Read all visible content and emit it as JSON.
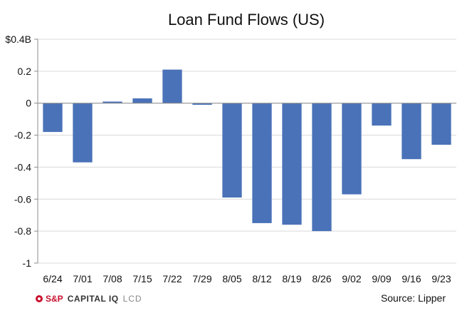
{
  "chart_data": {
    "type": "bar",
    "title": "Loan Fund Flows (US)",
    "categories": [
      "6/24",
      "7/01",
      "7/08",
      "7/15",
      "7/22",
      "7/29",
      "8/05",
      "8/12",
      "8/19",
      "8/26",
      "9/02",
      "9/09",
      "9/16",
      "9/23"
    ],
    "values": [
      -0.18,
      -0.37,
      0.01,
      0.03,
      0.21,
      -0.01,
      -0.59,
      -0.75,
      -0.76,
      -0.8,
      -0.57,
      -0.14,
      -0.35,
      -0.26
    ],
    "ylim": [
      -1,
      0.4
    ],
    "yticks": [
      0.4,
      0.2,
      0,
      -0.2,
      -0.4,
      -0.6,
      -0.8,
      -1
    ],
    "ytick_labels": [
      "$0.4B",
      "0.2",
      "0",
      "-0.2",
      "-0.4",
      "-0.6",
      "-0.8",
      "-1"
    ],
    "grid": true,
    "bar_color": "#4a72b8",
    "grid_color": "#d9d9d9",
    "axis_color": "#8c8c8c"
  },
  "footer": {
    "logo_sp": "S&P",
    "logo_ciq": "CAPITAL IQ",
    "logo_lcd": "LCD",
    "source": "Source: Lipper"
  }
}
